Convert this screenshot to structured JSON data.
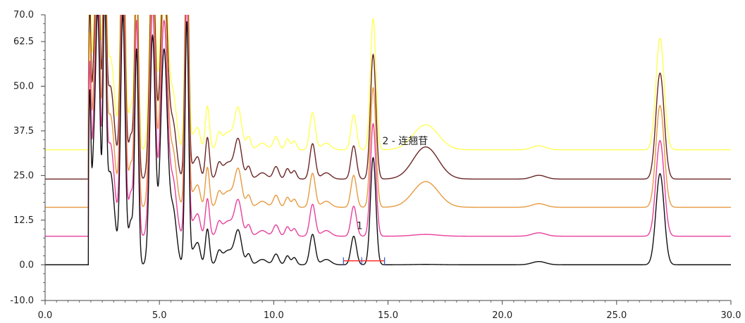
{
  "chart_data": {
    "type": "line",
    "title": "",
    "xlabel": "",
    "ylabel": "",
    "xlim": [
      0,
      30
    ],
    "ylim": [
      -10,
      70
    ],
    "grid": false,
    "x_ticks": [
      "0.0",
      "5.0",
      "10.0",
      "15.0",
      "20.0",
      "25.0",
      "30.0"
    ],
    "y_ticks": [
      "70.0",
      "62.5",
      "50.0",
      "37.5",
      "25.0",
      "12.5",
      "0.0",
      "-10.0"
    ],
    "x_tick_values": [
      0,
      5,
      10,
      15,
      20,
      25,
      30
    ],
    "y_tick_values": [
      70,
      62.5,
      50,
      37.5,
      25,
      12.5,
      0,
      -10
    ],
    "series": [
      {
        "color": "#ffff55",
        "baseline": 32.2,
        "peak_offset": 6.7
      },
      {
        "color": "#6b2525",
        "baseline": 24.0,
        "peak_offset": 4.9
      },
      {
        "color": "#e69a40",
        "baseline": 16.1,
        "peak_offset": 3.5
      },
      {
        "color": "#e8409c",
        "baseline": 8.0,
        "peak_offset": 1.5
      },
      {
        "color": "#111111",
        "baseline": 0.0,
        "peak_offset": 0.0
      }
    ],
    "peaks_reference_trace": [
      {
        "x": 1.95,
        "h": 45,
        "w": 0.05
      },
      {
        "x": 2.1,
        "h": 22,
        "w": 0.08
      },
      {
        "x": 2.3,
        "h": 70,
        "w": 0.1
      },
      {
        "x": 2.6,
        "h": 65,
        "w": 0.07
      },
      {
        "x": 2.85,
        "h": 26,
        "w": 0.18
      },
      {
        "x": 3.4,
        "h": 70,
        "w": 0.1
      },
      {
        "x": 3.75,
        "h": 12,
        "w": 0.1
      },
      {
        "x": 4.0,
        "h": 60,
        "w": 0.08
      },
      {
        "x": 4.7,
        "h": 64,
        "w": 0.12
      },
      {
        "x": 5.2,
        "h": 60,
        "w": 0.15
      },
      {
        "x": 5.6,
        "h": 15,
        "w": 0.15
      },
      {
        "x": 6.2,
        "h": 68,
        "w": 0.08
      },
      {
        "x": 6.5,
        "h": 4,
        "w": 0.12
      },
      {
        "x": 6.7,
        "h": 5,
        "w": 0.1
      },
      {
        "x": 7.1,
        "h": 10,
        "w": 0.09
      },
      {
        "x": 7.6,
        "h": 3,
        "w": 0.1
      },
      {
        "x": 8.0,
        "h": 4,
        "w": 0.25
      },
      {
        "x": 8.45,
        "h": 9,
        "w": 0.15
      },
      {
        "x": 8.9,
        "h": 3,
        "w": 0.1
      },
      {
        "x": 9.5,
        "h": 1.5,
        "w": 0.2
      },
      {
        "x": 10.1,
        "h": 3,
        "w": 0.12
      },
      {
        "x": 10.6,
        "h": 2.5,
        "w": 0.1
      },
      {
        "x": 10.9,
        "h": 2,
        "w": 0.1
      },
      {
        "x": 11.7,
        "h": 8.5,
        "w": 0.12
      },
      {
        "x": 12.3,
        "h": 1.5,
        "w": 0.2
      },
      {
        "x": 13.5,
        "h": 8,
        "w": 0.12
      },
      {
        "x": 14.35,
        "h": 30,
        "w": 0.12
      },
      {
        "x": 21.6,
        "h": 0.9,
        "w": 0.3
      },
      {
        "x": 26.9,
        "h": 25.5,
        "w": 0.18
      }
    ],
    "broad_peak_14_7": {
      "x": 16.65,
      "w": 0.55,
      "heights_by_series": [
        7.0,
        9.0,
        7.2,
        0.5,
        0.1
      ]
    },
    "annotations": [
      {
        "text": "1",
        "x": 13.62,
        "y": 10
      },
      {
        "text": "2 - 连翘苷",
        "x": 14.75,
        "y": 33.7
      }
    ],
    "integration_marks": {
      "start": 13.05,
      "mid": 13.85,
      "end": 14.85,
      "baseline": 1.1
    }
  }
}
